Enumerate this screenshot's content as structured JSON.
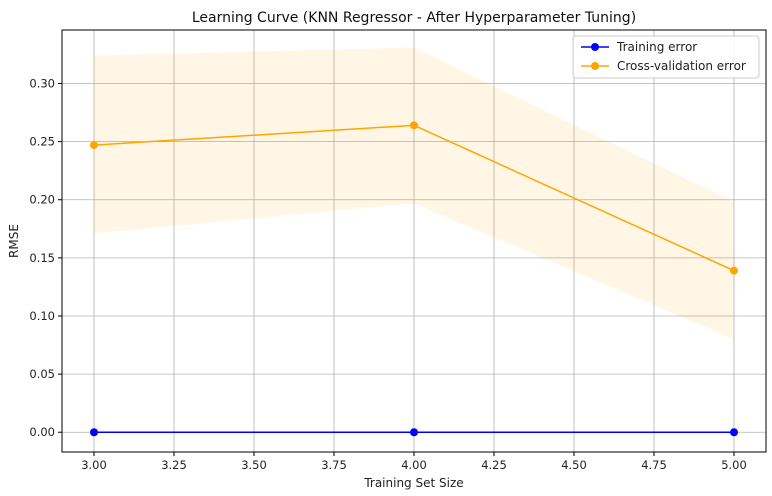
{
  "chart_data": {
    "type": "line",
    "title": "Learning Curve (KNN Regressor - After Hyperparameter Tuning)",
    "xlabel": "Training Set Size",
    "ylabel": "RMSE",
    "xlim": [
      2.9,
      5.1
    ],
    "ylim": [
      -0.017,
      0.346
    ],
    "xticks": [
      3.0,
      3.25,
      3.5,
      3.75,
      4.0,
      4.25,
      4.5,
      4.75,
      5.0
    ],
    "xtick_labels": [
      "3.00",
      "3.25",
      "3.50",
      "3.75",
      "4.00",
      "4.25",
      "4.50",
      "4.75",
      "5.00"
    ],
    "yticks": [
      0.0,
      0.05,
      0.1,
      0.15,
      0.2,
      0.25,
      0.3
    ],
    "ytick_labels": [
      "0.00",
      "0.05",
      "0.10",
      "0.15",
      "0.20",
      "0.25",
      "0.30"
    ],
    "grid": true,
    "legend_position": "top-right",
    "x": [
      3,
      4,
      5
    ],
    "series": [
      {
        "name": "Training error",
        "values": [
          0.0,
          0.0,
          0.0
        ],
        "color": "#0000ff",
        "band_lower": [
          0.0,
          0.0,
          0.0
        ],
        "band_upper": [
          0.0,
          0.0,
          0.0
        ]
      },
      {
        "name": "Cross-validation error",
        "values": [
          0.247,
          0.264,
          0.139
        ],
        "color": "#ffa500",
        "band_lower": [
          0.171,
          0.197,
          0.08
        ],
        "band_upper": [
          0.324,
          0.331,
          0.198
        ]
      }
    ]
  }
}
